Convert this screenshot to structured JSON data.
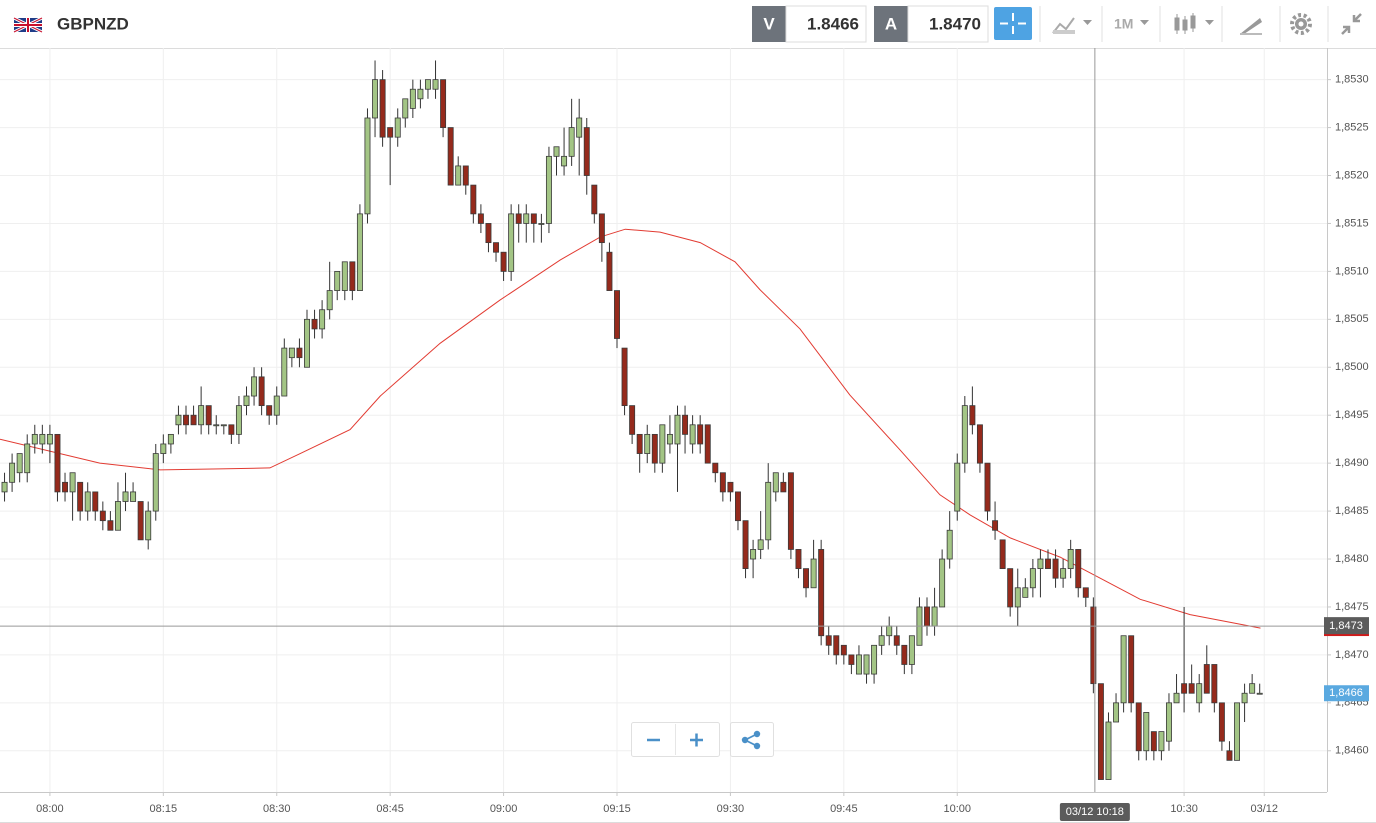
{
  "header": {
    "symbol": "GBPNZD",
    "bid_label": "V",
    "bid": "1.8466",
    "ask_label": "A",
    "ask": "1.8470",
    "timeframe": "1M"
  },
  "chart_data": {
    "type": "candlestick",
    "x": [
      -6,
      -5,
      -4,
      -3,
      -2,
      -1,
      0,
      1,
      2,
      3,
      4,
      5,
      6,
      7,
      8,
      9,
      10,
      11,
      12,
      13,
      14,
      15,
      16,
      17,
      18,
      19,
      20,
      21,
      22,
      23,
      24,
      25,
      26,
      27,
      28,
      29,
      30,
      31,
      32,
      33,
      34,
      35,
      36,
      37,
      38,
      39,
      40,
      41,
      42,
      43,
      44,
      45,
      46,
      47,
      48,
      49,
      50,
      51,
      52,
      53,
      54,
      55,
      56,
      57,
      58,
      59,
      60,
      61,
      62,
      63,
      64,
      65,
      66,
      67,
      68,
      69,
      70,
      71,
      72,
      73,
      74,
      75,
      76,
      77,
      78,
      79,
      80,
      81,
      82,
      83,
      84,
      85,
      86,
      87,
      88,
      89,
      90,
      91,
      92,
      93,
      94,
      95,
      96,
      97,
      98,
      99,
      100,
      101,
      102,
      103,
      104,
      105,
      106,
      107,
      108,
      109,
      110,
      111,
      112,
      113,
      114,
      115,
      116,
      117,
      118,
      119,
      120,
      121,
      122,
      123,
      124,
      125,
      126,
      127,
      128,
      129,
      130,
      131,
      132,
      133,
      134,
      135,
      136,
      137,
      138,
      139,
      140,
      141,
      142,
      143,
      144,
      145,
      146,
      147,
      148,
      149,
      150,
      151,
      152,
      153,
      154,
      155,
      156,
      157,
      158,
      159,
      160
    ],
    "open": [
      1.8487,
      1.8488,
      1.8489,
      1.8489,
      1.8492,
      1.8492,
      1.8492,
      1.8493,
      1.8488,
      1.8487,
      1.8488,
      1.8485,
      1.8487,
      1.8485,
      1.8484,
      1.8483,
      1.8486,
      1.8486,
      1.8486,
      1.8482,
      1.8485,
      1.8491,
      1.8492,
      1.8494,
      1.8495,
      1.8495,
      1.8494,
      1.8496,
      1.8494,
      1.8494,
      1.8494,
      1.8493,
      1.8496,
      1.8497,
      1.8499,
      1.8496,
      1.8495,
      1.8497,
      1.8501,
      1.8502,
      1.85,
      1.8505,
      1.8504,
      1.8506,
      1.8508,
      1.8508,
      1.8511,
      1.8508,
      1.8516,
      1.8526,
      1.853,
      1.8525,
      1.8524,
      1.8526,
      1.8527,
      1.8528,
      1.8529,
      1.8529,
      1.853,
      1.8525,
      1.8519,
      1.8521,
      1.8519,
      1.8516,
      1.8515,
      1.8513,
      1.8512,
      1.851,
      1.8516,
      1.8515,
      1.8516,
      1.8515,
      1.8515,
      1.8522,
      1.8521,
      1.8522,
      1.8524,
      1.8525,
      1.8519,
      1.8516,
      1.8512,
      1.8508,
      1.8502,
      1.8496,
      1.8493,
      1.8491,
      1.8493,
      1.849,
      1.8492,
      1.8492,
      1.8495,
      1.8492,
      1.8494,
      1.8494,
      1.849,
      1.8489,
      1.8488,
      1.8487,
      1.8484,
      1.848,
      1.8481,
      1.8482,
      1.8487,
      1.8488,
      1.8489,
      1.8481,
      1.8479,
      1.8477,
      1.8481,
      1.8472,
      1.8472,
      1.8471,
      1.847,
      1.8468,
      1.8468,
      1.8468,
      1.8471,
      1.8472,
      1.8472,
      1.8471,
      1.8469,
      1.8471,
      1.8475,
      1.8473,
      1.8475,
      1.848,
      1.8485,
      1.849,
      1.8496,
      1.8494,
      1.849,
      1.8484,
      1.8482,
      1.8479,
      1.8475,
      1.8476,
      1.8477,
      1.8479,
      1.848,
      1.848,
      1.8478,
      1.8479,
      1.8481,
      1.8477,
      1.8475,
      1.8467,
      1.8457,
      1.8463,
      1.8465,
      1.8472,
      1.8465,
      1.846,
      1.8462,
      1.846,
      1.8461,
      1.8465,
      1.8467,
      1.8467,
      1.8465,
      1.8469,
      1.8469,
      1.8465,
      1.846,
      1.8459,
      1.8465,
      1.8466,
      1.8466
    ],
    "high": [
      1.8489,
      1.8491,
      1.8491,
      1.8493,
      1.8494,
      1.8494,
      1.8494,
      1.8493,
      1.8489,
      1.8489,
      1.8488,
      1.8488,
      1.8487,
      1.8486,
      1.8485,
      1.8488,
      1.8489,
      1.8488,
      1.8486,
      1.8486,
      1.8492,
      1.8493,
      1.8493,
      1.8496,
      1.8496,
      1.8496,
      1.8498,
      1.8496,
      1.8495,
      1.8494,
      1.8494,
      1.8497,
      1.8498,
      1.85,
      1.85,
      1.8496,
      1.8498,
      1.8503,
      1.8502,
      1.8503,
      1.8506,
      1.8506,
      1.8507,
      1.8511,
      1.851,
      1.8511,
      1.8511,
      1.8517,
      1.8527,
      1.8532,
      1.8531,
      1.8525,
      1.8527,
      1.8528,
      1.853,
      1.853,
      1.853,
      1.8532,
      1.853,
      1.8525,
      1.8522,
      1.8521,
      1.8519,
      1.8517,
      1.8515,
      1.8513,
      1.8512,
      1.8517,
      1.8517,
      1.8517,
      1.8516,
      1.8516,
      1.8523,
      1.8523,
      1.8525,
      1.8528,
      1.8528,
      1.8526,
      1.8519,
      1.8516,
      1.8513,
      1.8508,
      1.8502,
      1.8496,
      1.8493,
      1.8494,
      1.8493,
      1.8494,
      1.8495,
      1.8496,
      1.8496,
      1.8495,
      1.8495,
      1.8494,
      1.849,
      1.8489,
      1.8488,
      1.8487,
      1.8484,
      1.8482,
      1.8485,
      1.849,
      1.8489,
      1.8489,
      1.8489,
      1.8481,
      1.8479,
      1.8482,
      1.8482,
      1.8473,
      1.8472,
      1.8471,
      1.847,
      1.8471,
      1.847,
      1.8471,
      1.8473,
      1.8474,
      1.8473,
      1.8471,
      1.8472,
      1.8476,
      1.8476,
      1.8477,
      1.8481,
      1.8485,
      1.8491,
      1.8497,
      1.8498,
      1.8494,
      1.849,
      1.8486,
      1.8482,
      1.8479,
      1.8479,
      1.8478,
      1.848,
      1.8481,
      1.8481,
      1.8481,
      1.848,
      1.8482,
      1.8481,
      1.8477,
      1.8476,
      1.8467,
      1.8464,
      1.8466,
      1.8472,
      1.8472,
      1.8465,
      1.8464,
      1.8462,
      1.8462,
      1.8466,
      1.8468,
      1.8475,
      1.8469,
      1.8468,
      1.8471,
      1.8469,
      1.8465,
      1.8461,
      1.8465,
      1.8467,
      1.8468,
      1.8467
    ],
    "low": [
      1.8486,
      1.8487,
      1.8488,
      1.8488,
      1.8491,
      1.8491,
      1.849,
      1.8486,
      1.8486,
      1.8484,
      1.8484,
      1.8484,
      1.8484,
      1.8483,
      1.8483,
      1.8483,
      1.8485,
      1.8486,
      1.8482,
      1.8481,
      1.8484,
      1.849,
      1.8491,
      1.8493,
      1.8493,
      1.8494,
      1.8493,
      1.8493,
      1.8493,
      1.8493,
      1.8492,
      1.8492,
      1.8495,
      1.8496,
      1.8495,
      1.8494,
      1.8494,
      1.8497,
      1.85,
      1.85,
      1.85,
      1.8503,
      1.8503,
      1.8505,
      1.8507,
      1.8507,
      1.8507,
      1.8508,
      1.8515,
      1.8524,
      1.8523,
      1.8519,
      1.8523,
      1.8525,
      1.8526,
      1.8527,
      1.8528,
      1.8528,
      1.8524,
      1.8519,
      1.8519,
      1.8518,
      1.8515,
      1.8514,
      1.8512,
      1.8511,
      1.8509,
      1.8509,
      1.8513,
      1.8513,
      1.8513,
      1.8513,
      1.8514,
      1.852,
      1.852,
      1.8521,
      1.852,
      1.8518,
      1.8515,
      1.8511,
      1.8508,
      1.8502,
      1.8495,
      1.8492,
      1.8489,
      1.849,
      1.8489,
      1.8489,
      1.8491,
      1.8487,
      1.8491,
      1.8491,
      1.8491,
      1.849,
      1.8488,
      1.8486,
      1.8486,
      1.8483,
      1.8478,
      1.8478,
      1.848,
      1.8481,
      1.8486,
      1.8487,
      1.848,
      1.8478,
      1.8476,
      1.8477,
      1.8471,
      1.847,
      1.8469,
      1.8469,
      1.8468,
      1.8468,
      1.8467,
      1.8467,
      1.847,
      1.8471,
      1.847,
      1.8468,
      1.8468,
      1.8471,
      1.8472,
      1.8472,
      1.8475,
      1.8479,
      1.8484,
      1.8489,
      1.8493,
      1.8489,
      1.8484,
      1.8482,
      1.8479,
      1.8474,
      1.8473,
      1.8476,
      1.8476,
      1.8476,
      1.8479,
      1.8477,
      1.8477,
      1.8478,
      1.8476,
      1.8475,
      1.8466,
      1.8457,
      1.8457,
      1.8463,
      1.8464,
      1.8464,
      1.8459,
      1.8459,
      1.8459,
      1.8459,
      1.846,
      1.8465,
      1.8464,
      1.8466,
      1.8464,
      1.8466,
      1.8464,
      1.846,
      1.8459,
      1.8459,
      1.8463,
      1.8466,
      1.8466
    ],
    "close": [
      1.8488,
      1.849,
      1.8491,
      1.8492,
      1.8493,
      1.8493,
      1.8493,
      1.8487,
      1.8487,
      1.8489,
      1.8485,
      1.8487,
      1.8485,
      1.8484,
      1.8483,
      1.8486,
      1.8487,
      1.8487,
      1.8482,
      1.8485,
      1.8491,
      1.8492,
      1.8493,
      1.8495,
      1.8494,
      1.8494,
      1.8496,
      1.8494,
      1.8494,
      1.8494,
      1.8493,
      1.8496,
      1.8497,
      1.8499,
      1.8496,
      1.8495,
      1.8497,
      1.8502,
      1.8502,
      1.8501,
      1.8505,
      1.8504,
      1.8506,
      1.8508,
      1.851,
      1.8511,
      1.8508,
      1.8516,
      1.8526,
      1.853,
      1.8524,
      1.8524,
      1.8526,
      1.8528,
      1.8529,
      1.8529,
      1.853,
      1.853,
      1.8525,
      1.8519,
      1.8521,
      1.8519,
      1.8516,
      1.8515,
      1.8513,
      1.8512,
      1.851,
      1.8516,
      1.8515,
      1.8516,
      1.8515,
      1.8515,
      1.8522,
      1.8523,
      1.8522,
      1.8525,
      1.8526,
      1.852,
      1.8516,
      1.8513,
      1.8508,
      1.8503,
      1.8496,
      1.8493,
      1.8491,
      1.8493,
      1.849,
      1.8494,
      1.8493,
      1.8495,
      1.8493,
      1.8494,
      1.8492,
      1.849,
      1.8489,
      1.8487,
      1.8487,
      1.8484,
      1.8479,
      1.8481,
      1.8482,
      1.8488,
      1.8489,
      1.8487,
      1.8481,
      1.8479,
      1.8477,
      1.848,
      1.8472,
      1.8471,
      1.847,
      1.847,
      1.8469,
      1.847,
      1.847,
      1.8471,
      1.8472,
      1.8473,
      1.8471,
      1.8469,
      1.8472,
      1.8475,
      1.8473,
      1.8475,
      1.848,
      1.8483,
      1.849,
      1.8496,
      1.8494,
      1.849,
      1.8485,
      1.8483,
      1.8479,
      1.8475,
      1.8477,
      1.8477,
      1.8479,
      1.848,
      1.8479,
      1.8478,
      1.8479,
      1.8481,
      1.8477,
      1.8476,
      1.8467,
      1.8457,
      1.8463,
      1.8465,
      1.8472,
      1.8465,
      1.846,
      1.8464,
      1.846,
      1.8462,
      1.8465,
      1.8466,
      1.8466,
      1.8466,
      1.8467,
      1.8466,
      1.8465,
      1.8461,
      1.8459,
      1.8465,
      1.8466,
      1.8467,
      1.8466
    ],
    "up_color": "#a3c585",
    "down_color": "#952a1c",
    "overlay": {
      "color": "#e23b32",
      "x": [
        -6.6,
        6.6,
        14.6,
        22.5,
        29.1,
        33.1,
        39.7,
        43.7,
        51.6,
        59.5,
        67.5,
        72.8,
        76.1,
        80.7,
        86.0,
        90.6,
        93.9,
        99.2,
        105.8,
        112.4,
        117.7,
        121.7,
        127.0,
        133.6,
        138.9,
        144.2,
        150.8,
        160.1
      ],
      "values": [
        1.84925,
        1.849,
        1.84893,
        1.84894,
        1.84895,
        1.8491,
        1.84935,
        1.8497,
        1.85025,
        1.8507,
        1.85112,
        1.85136,
        1.85144,
        1.85141,
        1.8513,
        1.8511,
        1.85081,
        1.8504,
        1.84971,
        1.84914,
        1.84867,
        1.84846,
        1.84822,
        1.84802,
        1.8478,
        1.84758,
        1.84742,
        1.84728
      ]
    },
    "xlim": [
      -6.6,
      168.9
    ],
    "ylim": [
      1.84557,
      1.85333
    ],
    "xticks": [
      {
        "value": 0,
        "label": "08:00"
      },
      {
        "value": 15,
        "label": "08:15"
      },
      {
        "value": 30,
        "label": "08:30"
      },
      {
        "value": 45,
        "label": "08:45"
      },
      {
        "value": 60,
        "label": "09:00"
      },
      {
        "value": 75,
        "label": "09:15"
      },
      {
        "value": 90,
        "label": "09:30"
      },
      {
        "value": 105,
        "label": "09:45"
      },
      {
        "value": 120,
        "label": "10:00"
      },
      {
        "value": 150,
        "label": "10:30"
      },
      {
        "value": 160.6,
        "label": "03/12"
      }
    ],
    "yticks": [
      {
        "value": 1.846,
        "label": "1,8460"
      },
      {
        "value": 1.8465,
        "label": "1,8465"
      },
      {
        "value": 1.847,
        "label": "1,8470"
      },
      {
        "value": 1.8475,
        "label": "1,8475"
      },
      {
        "value": 1.848,
        "label": "1,8480"
      },
      {
        "value": 1.8485,
        "label": "1,8485"
      },
      {
        "value": 1.849,
        "label": "1,8490"
      },
      {
        "value": 1.8495,
        "label": "1,8495"
      },
      {
        "value": 1.85,
        "label": "1,8500"
      },
      {
        "value": 1.8505,
        "label": "1,8505"
      },
      {
        "value": 1.851,
        "label": "1,8510"
      },
      {
        "value": 1.8515,
        "label": "1,8515"
      },
      {
        "value": 1.852,
        "label": "1,8520"
      },
      {
        "value": 1.8525,
        "label": "1,8525"
      },
      {
        "value": 1.853,
        "label": "1,8530"
      }
    ],
    "grid": true,
    "crosshair": {
      "x": 138.2,
      "y": 1.8473,
      "x_label": "03/12 10:18",
      "y_label": "1,8473"
    },
    "last_price": {
      "value": 1.8466,
      "label": "1,8466",
      "color": "#5aa9e0"
    }
  }
}
